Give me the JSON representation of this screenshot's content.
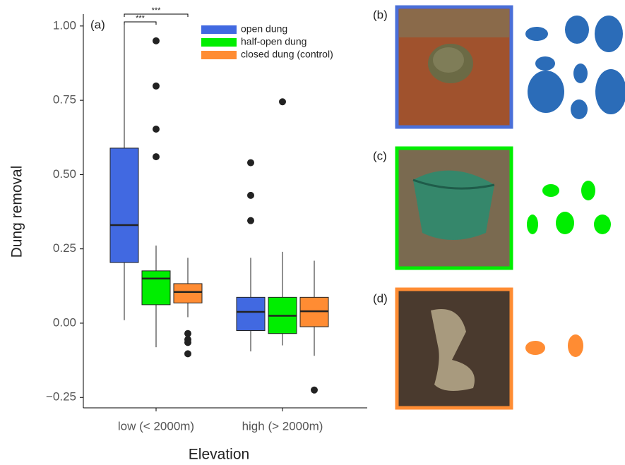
{
  "chart_data": {
    "type": "box",
    "panel_label": "(a)",
    "x_label": "Elevation",
    "y_label": "Dung removal",
    "categories": [
      "low (< 2000m)",
      "high (> 2000m)"
    ],
    "ylim": [
      -0.285,
      1.04
    ],
    "yticks": [
      {
        "value": -0.25,
        "label": "−0.25"
      },
      {
        "value": 0,
        "label": "0.00"
      },
      {
        "value": 0.25,
        "label": "0.25"
      },
      {
        "value": 0.5,
        "label": "0.50"
      },
      {
        "value": 0.75,
        "label": "0.75"
      },
      {
        "value": 1,
        "label": "1.00"
      }
    ],
    "series": [
      {
        "name": "open dung",
        "color": "#4169e1",
        "whislo": [
          0.01,
          -0.095
        ],
        "q1": [
          0.204,
          -0.025
        ],
        "med": [
          0.33,
          0.038
        ],
        "q3": [
          0.589,
          0.087
        ],
        "whishi": [
          1.01,
          0.22
        ],
        "outliers": [
          [],
          [
            0.345,
            0.43,
            0.54
          ]
        ]
      },
      {
        "name": "half-open dung",
        "color": "#00ee00",
        "whislo": [
          -0.081,
          -0.075
        ],
        "q1": [
          0.062,
          -0.035
        ],
        "med": [
          0.15,
          0.025
        ],
        "q3": [
          0.176,
          0.087
        ],
        "whishi": [
          0.261,
          0.24
        ],
        "outliers": [
          [
            0.56,
            0.653,
            0.798,
            0.95
          ],
          [
            0.745
          ]
        ]
      },
      {
        "name": "closed dung (control)",
        "color": "#ff8c33",
        "whislo": [
          0.02,
          -0.11
        ],
        "q1": [
          0.068,
          -0.012
        ],
        "med": [
          0.105,
          0.04
        ],
        "q3": [
          0.133,
          0.087
        ],
        "whishi": [
          0.22,
          0.21
        ],
        "outliers": [
          [
            -0.035,
            -0.055,
            -0.065,
            -0.103
          ],
          [
            -0.225
          ]
        ]
      }
    ],
    "significance": [
      "***",
      "***"
    ],
    "legend": "top-right"
  },
  "photo_panels": [
    "(b)",
    "(c)",
    "(d)"
  ]
}
